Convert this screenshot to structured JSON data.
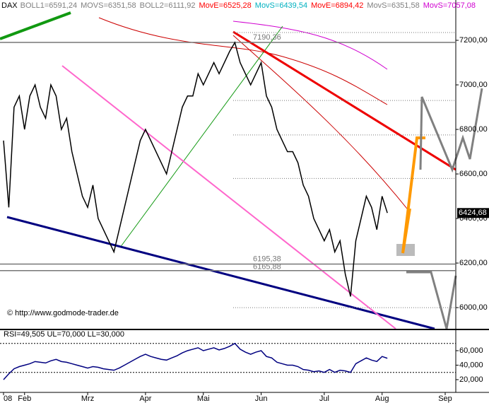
{
  "chart_data": {
    "type": "line",
    "title": "DAX",
    "indicators": [
      {
        "label": "BOLL1=6591,24",
        "color": "#808080"
      },
      {
        "label": "MOVS=6351,58",
        "color": "#808080"
      },
      {
        "label": "BOLL2=6111,92",
        "color": "#808080"
      },
      {
        "label": "MovE=6525,28",
        "color": "#ff0000"
      },
      {
        "label": "MovS=6439,54",
        "color": "#00b0c0"
      },
      {
        "label": "MovE=6894,42",
        "color": "#ff0000"
      },
      {
        "label": "MovS=6351,58",
        "color": "#808080"
      },
      {
        "label": "MovS=7057,08",
        "color": "#d000d0"
      }
    ],
    "categories": [
      "08",
      null,
      null,
      null,
      "Feb",
      null,
      null,
      null,
      null,
      null,
      null,
      null,
      null,
      null,
      null,
      null,
      "Mrz",
      null,
      null,
      null,
      null,
      null,
      null,
      null,
      null,
      null,
      null,
      "Apr",
      null,
      null,
      null,
      null,
      null,
      null,
      null,
      null,
      null,
      null,
      "Mai",
      null,
      null,
      null,
      null,
      null,
      null,
      null,
      null,
      null,
      null,
      "Jun",
      null,
      null,
      null,
      null,
      null,
      null,
      null,
      null,
      null,
      null,
      null,
      "Jul",
      null,
      null,
      null,
      null,
      null,
      null,
      null,
      null,
      null,
      null,
      "Aug",
      null,
      null,
      null,
      null,
      null,
      null,
      null,
      null,
      null,
      null,
      null,
      "Sep"
    ],
    "values": [
      6750,
      6450,
      6900,
      6950,
      6800,
      6950,
      7000,
      6900,
      6850,
      7000,
      6950,
      6800,
      6850,
      6700,
      6600,
      6500,
      6450,
      6550,
      6400,
      6350,
      6300,
      6250,
      6350,
      6450,
      6550,
      6650,
      6750,
      6800,
      6750,
      6700,
      6650,
      6600,
      6700,
      6800,
      6900,
      6950,
      6950,
      7050,
      7000,
      7050,
      7100,
      7050,
      7100,
      7150,
      7190,
      7100,
      7050,
      7000,
      7050,
      7100,
      6950,
      6900,
      6800,
      6750,
      6700,
      6700,
      6650,
      6550,
      6500,
      6400,
      6350,
      6300,
      6350,
      6250,
      6300,
      6150,
      6050,
      6300,
      6400,
      6500,
      6450,
      6350,
      6500,
      6425,
      null,
      null,
      null,
      null,
      null,
      null,
      null,
      null,
      null,
      null,
      null
    ],
    "color": "#000000",
    "ylim": [
      5905,
      7381
    ],
    "yticks": [
      {
        "value": 6000,
        "label": "6000,00"
      },
      {
        "value": 6200,
        "label": "6200,00"
      },
      {
        "value": 6400,
        "label": "6400,00"
      },
      {
        "value": 6600,
        "label": "6600,00"
      },
      {
        "value": 6800,
        "label": "6800,00"
      },
      {
        "value": 7000,
        "label": "7000,00"
      },
      {
        "value": 7200,
        "label": "7200,00"
      }
    ],
    "levels": [
      {
        "value": 7190.36,
        "label": "7190,36"
      },
      {
        "value": 6195.38,
        "label": "6195,38"
      },
      {
        "value": 6165.88,
        "label": "6165,88"
      }
    ],
    "dotted_levels": [
      7235,
      6930,
      6775,
      6580,
      6000
    ],
    "last_value": {
      "value": 6424.68,
      "label": "6424,68"
    },
    "source": "© http://www.godmode-trader.de",
    "rsi": {
      "title": "RSI=49,505 UL=70,000 LL=30,000",
      "color": "#000080",
      "values": [
        20,
        28,
        35,
        38,
        40,
        42,
        45,
        44,
        43,
        46,
        48,
        45,
        44,
        42,
        40,
        38,
        36,
        38,
        37,
        35,
        34,
        33,
        36,
        40,
        44,
        48,
        52,
        55,
        52,
        50,
        48,
        47,
        50,
        53,
        57,
        60,
        62,
        64,
        60,
        62,
        64,
        61,
        63,
        66,
        70,
        62,
        58,
        55,
        58,
        60,
        52,
        50,
        44,
        42,
        40,
        40,
        38,
        34,
        33,
        31,
        32,
        30,
        34,
        30,
        33,
        32,
        30,
        42,
        46,
        50,
        47,
        45,
        52,
        49.505,
        null,
        null,
        null,
        null,
        null,
        null,
        null,
        null,
        null,
        null,
        null
      ],
      "ylim": [
        2.4,
        87.3
      ],
      "yticks": [
        {
          "value": 20,
          "label": "20,000"
        },
        {
          "value": 40,
          "label": "40,000"
        },
        {
          "value": 60,
          "label": "60,000"
        }
      ],
      "bands": [
        30,
        70
      ]
    }
  }
}
